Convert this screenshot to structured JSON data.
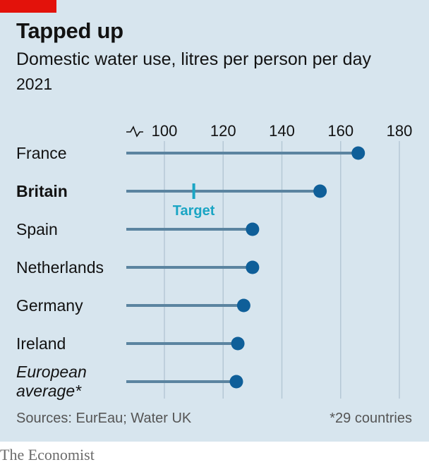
{
  "header": {
    "title": "Tapped up",
    "subtitle": "Domestic water use, litres per person per day",
    "year": "2021"
  },
  "footer": {
    "sources": "Sources: EurEau; Water UK",
    "note": "*29 countries",
    "brand": "The Economist"
  },
  "colors": {
    "brand_red": "#e3120b",
    "panel": "#d7e5ee",
    "dot": "#0f5f99",
    "stem": "#5b84a0",
    "target": "#1aa5c4",
    "grid": "#b5c8d5"
  },
  "chart_data": {
    "type": "lollipop",
    "xlim": [
      87,
      180
    ],
    "xticks": [
      "100",
      "120",
      "140",
      "160",
      "180"
    ],
    "axis_break": true,
    "categories": [
      {
        "label": "France",
        "style": "normal",
        "value": 166
      },
      {
        "label": "Britain",
        "style": "bold",
        "value": 153,
        "target": 110,
        "target_label": "Target"
      },
      {
        "label": "Spain",
        "style": "normal",
        "value": 130
      },
      {
        "label": "Netherlands",
        "style": "normal",
        "value": 130
      },
      {
        "label": "Germany",
        "style": "normal",
        "value": 127
      },
      {
        "label": "Ireland",
        "style": "normal",
        "value": 125
      },
      {
        "label": "European average*",
        "lines": [
          "European",
          "average*"
        ],
        "style": "italic",
        "value": 124.5
      }
    ]
  }
}
